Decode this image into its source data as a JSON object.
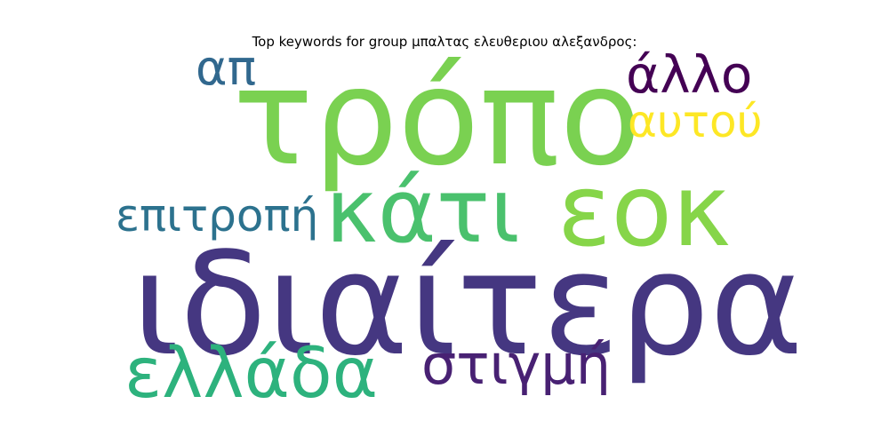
{
  "title": "Top keywords for group μπαλτας ελευθεριου αλεξανδρος:",
  "words": [
    {
      "text": "ιδιαίτερα",
      "color": "#453781"
    },
    {
      "text": "τρόπο",
      "color": "#7ad151"
    },
    {
      "text": "κάτι",
      "color": "#4ac16d"
    },
    {
      "text": "εοκ",
      "color": "#86d549"
    },
    {
      "text": "ελλάδα",
      "color": "#2db27d"
    },
    {
      "text": "στιγμή",
      "color": "#482173"
    },
    {
      "text": "επιτροπή",
      "color": "#2c728e"
    },
    {
      "text": "άλλο",
      "color": "#440154"
    },
    {
      "text": "αυτού",
      "color": "#fde725"
    },
    {
      "text": "απ",
      "color": "#31688e"
    }
  ]
}
